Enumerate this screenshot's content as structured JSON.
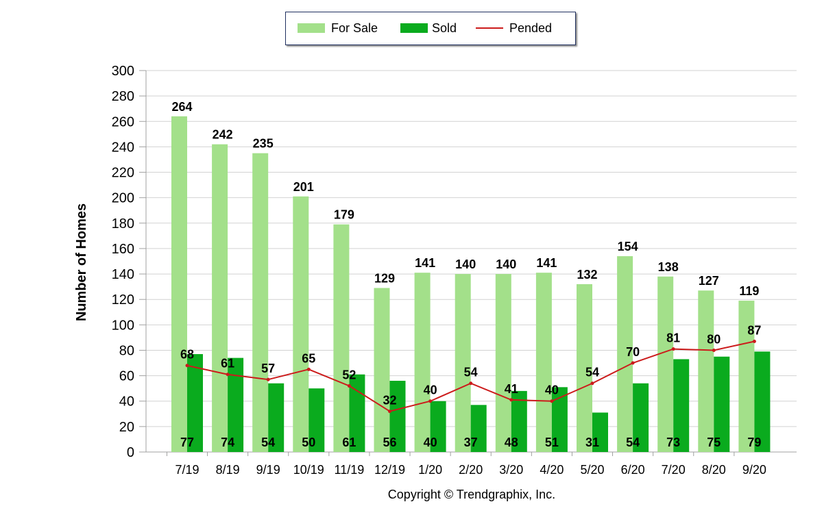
{
  "chart_data": {
    "type": "bar",
    "ylabel": "Number of Homes",
    "ylim": [
      0,
      300
    ],
    "yticks": [
      0,
      20,
      40,
      60,
      80,
      100,
      120,
      140,
      160,
      180,
      200,
      220,
      240,
      260,
      280,
      300
    ],
    "categories": [
      "7/19",
      "8/19",
      "9/19",
      "10/19",
      "11/19",
      "12/19",
      "1/20",
      "2/20",
      "3/20",
      "4/20",
      "5/20",
      "6/20",
      "7/20",
      "8/20",
      "9/20"
    ],
    "series": [
      {
        "name": "For Sale",
        "type": "bar",
        "color": "#a3e08a",
        "values": [
          264,
          242,
          235,
          201,
          179,
          129,
          141,
          140,
          140,
          141,
          132,
          154,
          138,
          127,
          119
        ]
      },
      {
        "name": "Sold",
        "type": "bar",
        "color": "#0aab1e",
        "values": [
          77,
          74,
          54,
          50,
          61,
          56,
          40,
          37,
          48,
          51,
          31,
          54,
          73,
          75,
          79
        ]
      },
      {
        "name": "Pended",
        "type": "line",
        "color": "#cc1b1b",
        "values": [
          68,
          61,
          57,
          65,
          52,
          32,
          40,
          54,
          41,
          40,
          54,
          70,
          81,
          80,
          87
        ]
      }
    ],
    "legend_position": "top-center",
    "grid": true,
    "copyright": "Copyright © Trendgraphix, Inc."
  }
}
